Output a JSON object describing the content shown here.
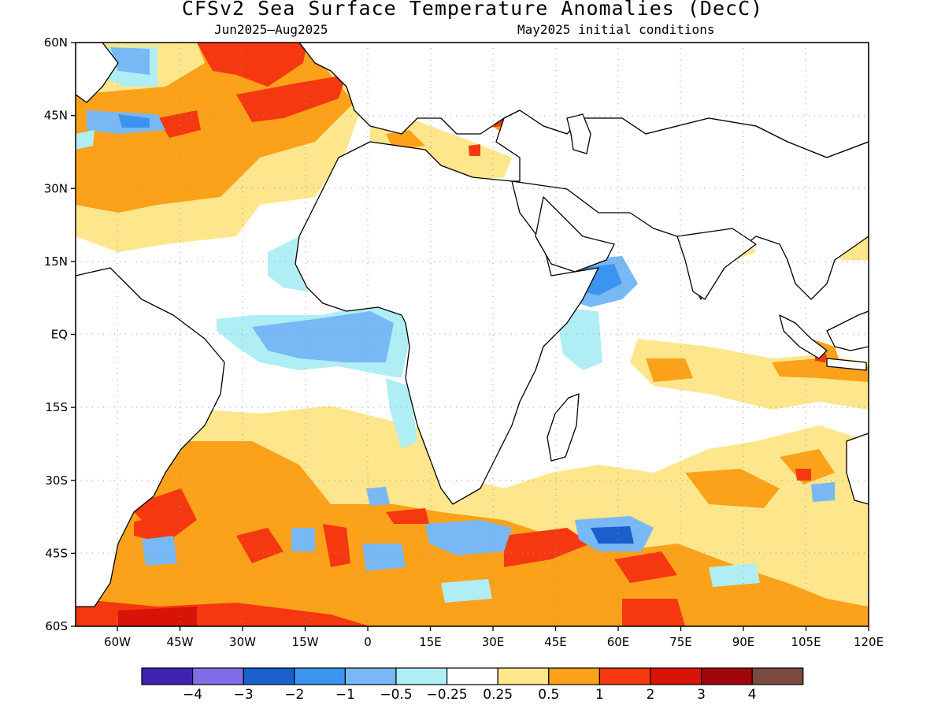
{
  "title": "CFSv2 Sea Surface Temperature Anomalies (DecC)",
  "period": "Jun2025–Aug2025",
  "initial_conditions": "May2025 initial conditions",
  "map": {
    "lon_range": [
      -70,
      120
    ],
    "lat_range": [
      -60,
      60
    ],
    "lat_ticks": [
      {
        "value": 60,
        "label": "60N"
      },
      {
        "value": 45,
        "label": "45N"
      },
      {
        "value": 30,
        "label": "30N"
      },
      {
        "value": 15,
        "label": "15N"
      },
      {
        "value": 0,
        "label": "EQ"
      },
      {
        "value": -15,
        "label": "15S"
      },
      {
        "value": -30,
        "label": "30S"
      },
      {
        "value": -45,
        "label": "45S"
      },
      {
        "value": -60,
        "label": "60S"
      }
    ],
    "lon_ticks": [
      {
        "value": -60,
        "label": "60W"
      },
      {
        "value": -45,
        "label": "45W"
      },
      {
        "value": -30,
        "label": "30W"
      },
      {
        "value": -15,
        "label": "15W"
      },
      {
        "value": 0,
        "label": "0"
      },
      {
        "value": 15,
        "label": "15E"
      },
      {
        "value": 30,
        "label": "30E"
      },
      {
        "value": 45,
        "label": "45E"
      },
      {
        "value": 60,
        "label": "60E"
      },
      {
        "value": 75,
        "label": "75E"
      },
      {
        "value": 90,
        "label": "90E"
      },
      {
        "value": 105,
        "label": "105E"
      },
      {
        "value": 120,
        "label": "120E"
      }
    ],
    "gridlines": "dotted",
    "land_color": "#ffffff"
  },
  "colorbar": {
    "colors": [
      "#3e22b0",
      "#7f6de8",
      "#1b5fcc",
      "#3b94ef",
      "#78b8f5",
      "#b0eef6",
      "#ffffff",
      "#fde68c",
      "#fca11a",
      "#f5380f",
      "#d81408",
      "#a0060a",
      "#7a4a3e"
    ],
    "labels": [
      "−4",
      "−3",
      "−2",
      "−1",
      "−0.5",
      "−0.25",
      "0.25",
      "0.5",
      "1",
      "2",
      "3",
      "4"
    ]
  }
}
